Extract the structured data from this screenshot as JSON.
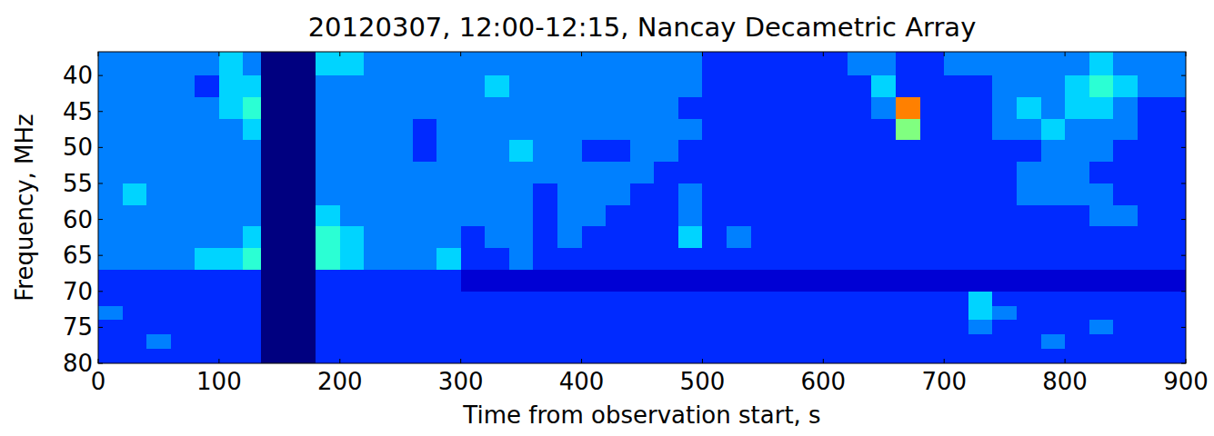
{
  "chart_data": {
    "type": "heatmap",
    "title": "20120307, 12:00-12:15, Nancay Decametric Array",
    "x_label": "Time from observation start, s",
    "y_label": "Frequency, MHz",
    "xlim": [
      0,
      900
    ],
    "xticks": [
      0,
      100,
      200,
      300,
      400,
      500,
      600,
      700,
      800,
      900
    ],
    "ylim": [
      36.7,
      80
    ],
    "yticks": [
      40,
      45,
      50,
      55,
      60,
      65,
      70,
      75,
      80
    ],
    "color": "jet",
    "zlim": [
      0,
      12
    ],
    "x_edges": [
      0,
      20,
      40,
      60,
      80,
      100,
      120,
      135,
      180,
      200,
      220,
      240,
      260,
      280,
      300,
      320,
      340,
      360,
      380,
      400,
      420,
      440,
      460,
      480,
      500,
      520,
      540,
      560,
      580,
      600,
      620,
      640,
      660,
      680,
      700,
      720,
      740,
      760,
      780,
      800,
      820,
      840,
      860,
      880,
      900
    ],
    "y_edges": [
      36.7,
      40,
      43,
      46,
      49,
      52,
      55,
      58,
      61,
      64,
      67,
      70,
      72,
      74,
      76,
      78,
      80
    ],
    "z": [
      [
        3,
        3,
        3,
        3,
        3,
        4,
        3,
        null,
        4,
        4,
        3,
        3,
        3,
        3,
        3,
        3,
        3,
        3,
        3,
        3,
        3,
        3,
        3,
        3,
        2,
        2,
        2,
        2,
        2,
        2,
        3,
        3,
        2,
        2,
        3,
        3,
        3,
        3,
        3,
        3,
        4,
        3,
        3,
        3
      ],
      [
        3,
        3,
        3,
        3,
        2,
        4,
        4,
        null,
        3,
        3,
        3,
        3,
        3,
        3,
        3,
        4,
        3,
        3,
        3,
        3,
        3,
        3,
        3,
        3,
        2,
        2,
        2,
        2,
        2,
        2,
        2,
        4,
        2,
        2,
        2,
        2,
        3,
        3,
        3,
        4,
        5,
        4,
        3,
        3
      ],
      [
        3,
        3,
        3,
        3,
        3,
        4,
        5,
        null,
        3,
        3,
        3,
        3,
        3,
        3,
        3,
        3,
        3,
        3,
        3,
        3,
        3,
        3,
        3,
        2,
        2,
        2,
        2,
        2,
        2,
        2,
        2,
        3,
        9,
        2,
        2,
        2,
        3,
        4,
        3,
        4,
        4,
        3,
        2,
        2
      ],
      [
        3,
        3,
        3,
        3,
        3,
        3,
        4,
        null,
        3,
        3,
        3,
        3,
        2,
        3,
        3,
        3,
        3,
        3,
        3,
        3,
        3,
        3,
        3,
        3,
        2,
        2,
        2,
        2,
        2,
        2,
        2,
        2,
        6,
        2,
        2,
        2,
        3,
        3,
        4,
        3,
        3,
        3,
        2,
        2
      ],
      [
        3,
        3,
        3,
        3,
        3,
        3,
        3,
        null,
        3,
        3,
        3,
        3,
        2,
        3,
        3,
        3,
        4,
        3,
        3,
        2,
        2,
        3,
        3,
        2,
        2,
        2,
        2,
        2,
        2,
        2,
        2,
        2,
        2,
        2,
        2,
        2,
        2,
        2,
        3,
        3,
        3,
        2,
        2,
        2
      ],
      [
        3,
        3,
        3,
        3,
        3,
        3,
        3,
        null,
        3,
        3,
        3,
        3,
        3,
        3,
        3,
        3,
        3,
        3,
        3,
        3,
        3,
        3,
        2,
        2,
        2,
        2,
        2,
        2,
        2,
        2,
        2,
        2,
        2,
        2,
        2,
        2,
        2,
        3,
        3,
        3,
        2,
        2,
        2,
        2
      ],
      [
        3,
        4,
        3,
        3,
        3,
        3,
        3,
        null,
        3,
        3,
        3,
        3,
        3,
        3,
        3,
        3,
        3,
        2,
        3,
        3,
        3,
        2,
        2,
        3,
        2,
        2,
        2,
        2,
        2,
        2,
        2,
        2,
        2,
        2,
        2,
        2,
        2,
        3,
        3,
        3,
        3,
        2,
        2,
        2
      ],
      [
        3,
        3,
        3,
        3,
        3,
        3,
        3,
        null,
        4,
        3,
        3,
        3,
        3,
        3,
        3,
        3,
        3,
        2,
        3,
        3,
        2,
        2,
        2,
        3,
        2,
        2,
        2,
        2,
        2,
        2,
        2,
        2,
        2,
        2,
        2,
        2,
        2,
        2,
        2,
        2,
        3,
        3,
        2,
        2
      ],
      [
        3,
        3,
        3,
        3,
        3,
        3,
        4,
        null,
        5,
        4,
        3,
        3,
        3,
        3,
        2,
        3,
        3,
        2,
        3,
        2,
        2,
        2,
        2,
        4,
        2,
        3,
        2,
        2,
        2,
        2,
        2,
        2,
        2,
        2,
        2,
        2,
        2,
        2,
        2,
        2,
        2,
        2,
        2,
        2
      ],
      [
        3,
        3,
        3,
        3,
        4,
        4,
        5,
        null,
        5,
        4,
        3,
        3,
        3,
        4,
        2,
        2,
        3,
        2,
        2,
        2,
        2,
        2,
        2,
        2,
        2,
        2,
        2,
        2,
        2,
        2,
        2,
        2,
        2,
        2,
        2,
        2,
        2,
        2,
        2,
        2,
        2,
        2,
        2,
        2
      ],
      [
        2,
        2,
        2,
        2,
        2,
        2,
        2,
        null,
        2,
        2,
        2,
        2,
        2,
        2,
        1,
        1,
        1,
        1,
        1,
        1,
        1,
        1,
        1,
        1,
        1,
        1,
        1,
        1,
        1,
        1,
        1,
        1,
        1,
        1,
        1,
        1,
        1,
        1,
        1,
        1,
        1,
        1,
        1,
        1
      ],
      [
        2,
        2,
        2,
        2,
        2,
        2,
        2,
        null,
        2,
        2,
        2,
        2,
        2,
        2,
        2,
        2,
        2,
        2,
        2,
        2,
        2,
        2,
        2,
        2,
        2,
        2,
        2,
        2,
        2,
        2,
        2,
        2,
        2,
        2,
        2,
        4,
        2,
        2,
        2,
        2,
        2,
        2,
        2,
        2
      ],
      [
        3,
        2,
        2,
        2,
        2,
        2,
        2,
        null,
        2,
        2,
        2,
        2,
        2,
        2,
        2,
        2,
        2,
        2,
        2,
        2,
        2,
        2,
        2,
        2,
        2,
        2,
        2,
        2,
        2,
        2,
        2,
        2,
        2,
        2,
        2,
        4,
        3,
        2,
        2,
        2,
        2,
        2,
        2,
        2
      ],
      [
        2,
        2,
        2,
        2,
        2,
        2,
        2,
        null,
        2,
        2,
        2,
        2,
        2,
        2,
        2,
        2,
        2,
        2,
        2,
        2,
        2,
        2,
        2,
        2,
        2,
        2,
        2,
        2,
        2,
        2,
        2,
        2,
        2,
        2,
        2,
        3,
        2,
        2,
        2,
        2,
        3,
        2,
        2,
        2
      ],
      [
        2,
        2,
        3,
        2,
        2,
        2,
        2,
        null,
        2,
        2,
        2,
        2,
        2,
        2,
        2,
        2,
        2,
        2,
        2,
        2,
        2,
        2,
        2,
        2,
        2,
        2,
        2,
        2,
        2,
        2,
        2,
        2,
        2,
        2,
        2,
        2,
        2,
        2,
        3,
        2,
        2,
        2,
        2,
        2
      ],
      [
        2,
        2,
        2,
        2,
        2,
        2,
        2,
        null,
        2,
        2,
        2,
        2,
        2,
        2,
        2,
        2,
        2,
        2,
        2,
        2,
        2,
        2,
        2,
        2,
        2,
        2,
        2,
        2,
        2,
        2,
        2,
        2,
        2,
        2,
        2,
        2,
        2,
        2,
        2,
        2,
        2,
        2,
        2,
        2
      ]
    ]
  }
}
